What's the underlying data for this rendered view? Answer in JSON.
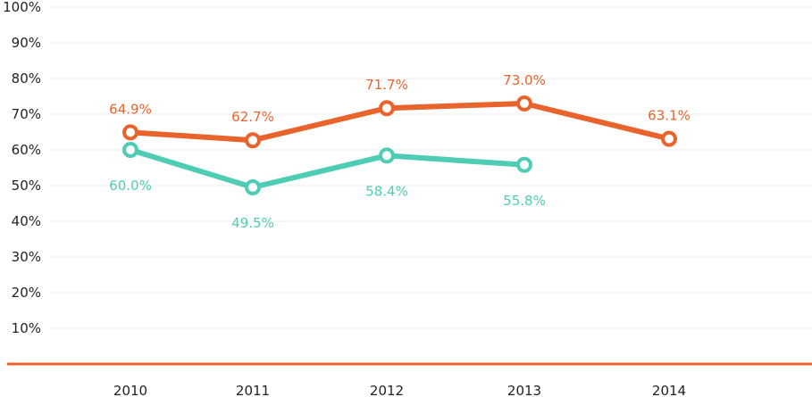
{
  "chart_data": {
    "type": "line",
    "title": "",
    "xlabel": "",
    "ylabel": "",
    "categories": [
      "2010",
      "2011",
      "2012",
      "2013",
      "2014"
    ],
    "ylim": [
      0,
      100
    ],
    "yticks": [
      "10%",
      "20%",
      "30%",
      "40%",
      "50%",
      "60%",
      "70%",
      "80%",
      "90%",
      "100%"
    ],
    "grid": true,
    "legend": "none",
    "series": [
      {
        "color": "#e8642c",
        "values": [
          64.9,
          62.7,
          71.7,
          73.0,
          63.1
        ],
        "labels": [
          "64.9%",
          "62.7%",
          "71.7%",
          "73.0%",
          "63.1%"
        ],
        "label_position": "above"
      },
      {
        "color": "#4ecdb4",
        "values": [
          60.0,
          49.5,
          58.4,
          55.8,
          null
        ],
        "labels": [
          "60.0%",
          "49.5%",
          "58.4%",
          "55.8%",
          null
        ],
        "label_position": "below"
      }
    ],
    "axis_color": "#e8642c",
    "grid_color": "#eeeeee"
  }
}
